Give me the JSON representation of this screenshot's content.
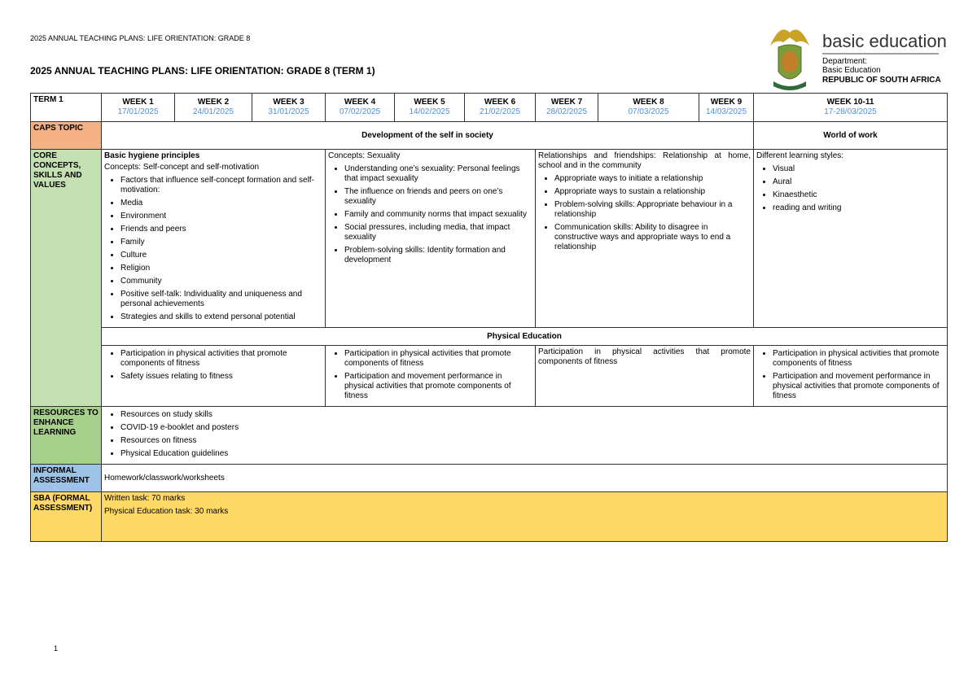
{
  "header": {
    "running_title": "2025 ANNUAL TEACHING PLANS: LIFE ORIENTATION: GRADE 8",
    "title": "2025 ANNUAL TEACHING PLANS: LIFE ORIENTATION: GRADE 8 (TERM 1)",
    "logo": {
      "name": "basic education",
      "lines": [
        "Department:",
        "Basic Education",
        "REPUBLIC OF SOUTH AFRICA"
      ]
    }
  },
  "table": {
    "term": "TERM 1",
    "weeks": [
      {
        "label": "WEEK 1",
        "date": "17/01/2025"
      },
      {
        "label": "WEEK 2",
        "date": "24/01/2025"
      },
      {
        "label": "WEEK 3",
        "date": "31/01/2025"
      },
      {
        "label": "WEEK 4",
        "date": "07/02/2025"
      },
      {
        "label": "WEEK 5",
        "date": "14/02/2025"
      },
      {
        "label": "WEEK 6",
        "date": "21/02/2025"
      },
      {
        "label": "WEEK 7",
        "date": "28/02/2025"
      },
      {
        "label": "WEEK 8",
        "date": "07/03/2025"
      },
      {
        "label": "WEEK 9",
        "date": "14/03/2025"
      },
      {
        "label": "WEEK 10-11",
        "date": "17-28/03/2025"
      }
    ],
    "caps_topic": {
      "label": "CAPS TOPIC",
      "topics": [
        "Development of the self in society",
        "World of work"
      ]
    },
    "core": {
      "label": "CORE CONCEPTS, SKILLS AND VALUES",
      "cells": [
        {
          "heading": "Basic hygiene principles",
          "intro": "Concepts: Self-concept and self-motivation",
          "bullets": [
            "Factors that influence self-concept formation and self-motivation:",
            "Media",
            "Environment",
            "Friends and peers",
            "Family",
            "Culture",
            "Religion",
            "Community",
            "Positive self-talk: Individuality and uniqueness and personal achievements",
            "Strategies and skills to extend personal potential"
          ]
        },
        {
          "intro": "Concepts: Sexuality",
          "bullets": [
            "Understanding one’s sexuality: Personal feelings that impact sexuality",
            "The influence on friends and peers on one’s sexuality",
            "Family and community norms that impact sexuality",
            "Social pressures, including media, that impact sexuality",
            "Problem-solving skills: Identity formation and development"
          ]
        },
        {
          "intro": "Relationships and friendships: Relationship at home, school and in the community",
          "bullets": [
            "Appropriate ways to initiate a relationship",
            "Appropriate ways to sustain a relationship",
            "Problem-solving skills: Appropriate behaviour in a relationship",
            "Communication skills: Ability to disagree in constructive ways and appropriate ways to end a relationship"
          ]
        },
        {
          "intro": "Different learning styles:",
          "bullets": [
            "Visual",
            "Aural",
            "Kinaesthetic",
            "reading and writing"
          ]
        }
      ]
    },
    "pe": {
      "heading": "Physical Education",
      "cells": [
        {
          "bullets": [
            "Participation in physical activities that promote components of fitness",
            "Safety issues relating to fitness"
          ]
        },
        {
          "bullets": [
            "Participation in physical activities that promote components of fitness",
            "Participation and movement performance in physical activities that promote components of fitness"
          ]
        },
        {
          "intro": "Participation in physical activities that promote components of fitness"
        },
        {
          "bullets": [
            "Participation in physical activities that promote components of fitness",
            "Participation and movement performance in physical activities that promote components of fitness"
          ]
        }
      ]
    },
    "resources": {
      "label": "RESOURCES TO ENHANCE LEARNING",
      "items": [
        "Resources on study skills",
        "COVID-19 e-booklet and posters",
        "Resources on fitness",
        "Physical Education guidelines"
      ]
    },
    "informal": {
      "label": "INFORMAL ASSESSMENT",
      "text": "Homework/classwork/worksheets"
    },
    "sba": {
      "label": "SBA (FORMAL ASSESSMENT)",
      "lines": [
        "Written task: 70 marks",
        "Physical Education task: 30 marks"
      ]
    }
  },
  "footer": {
    "page_number": "1"
  }
}
